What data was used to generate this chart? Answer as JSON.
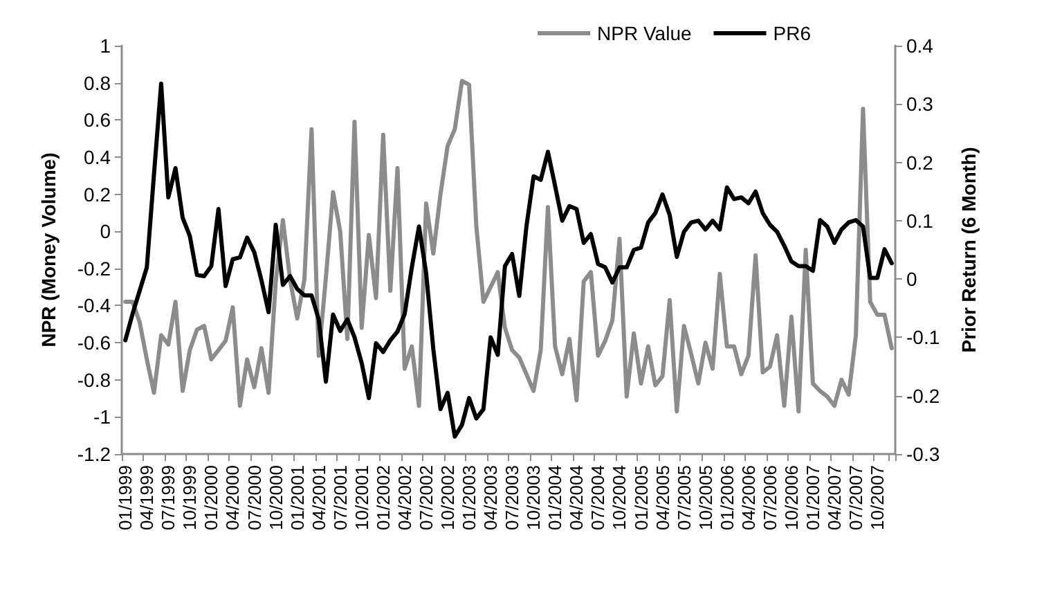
{
  "chart_data": {
    "type": "line",
    "ylabel": "NPR (Money Volume)",
    "y2label": "Prior Return (6 Month)",
    "categories": [
      "01/1999",
      null,
      null,
      "04/1999",
      null,
      null,
      "07/1999",
      null,
      null,
      "10/1999",
      null,
      null,
      "01/2000",
      null,
      null,
      "04/2000",
      null,
      null,
      "07/2000",
      null,
      null,
      "10/2000",
      null,
      null,
      "01/2001",
      null,
      null,
      "04/2001",
      null,
      null,
      "07/2001",
      null,
      null,
      "10/2001",
      null,
      null,
      "01/2002",
      null,
      null,
      "04/2002",
      null,
      null,
      "07/2002",
      null,
      null,
      "10/2002",
      null,
      null,
      "01/2003",
      null,
      null,
      "04/2003",
      null,
      null,
      "07/2003",
      null,
      null,
      "10/2003",
      null,
      null,
      "01/2004",
      null,
      null,
      "04/2004",
      null,
      null,
      "07/2004",
      null,
      null,
      "10/2004",
      null,
      null,
      "01/2005",
      null,
      null,
      "04/2005",
      null,
      null,
      "07/2005",
      null,
      null,
      "10/2005",
      null,
      null,
      "01/2006",
      null,
      null,
      "04/2006",
      null,
      null,
      "07/2006",
      null,
      null,
      "10/2006",
      null,
      null,
      "01/2007",
      null,
      null,
      "04/2007",
      null,
      null,
      "07/2007",
      null,
      null,
      "10/2007",
      null,
      null
    ],
    "series": [
      {
        "name": "NPR Value",
        "color": "#8c8c8c",
        "values": [
          -0.38,
          -0.38,
          -0.49,
          -0.69,
          -0.87,
          -0.56,
          -0.61,
          -0.38,
          -0.86,
          -0.64,
          -0.53,
          -0.51,
          -0.69,
          -0.64,
          -0.59,
          -0.41,
          -0.94,
          -0.69,
          -0.84,
          -0.63,
          -0.87,
          -0.27,
          0.06,
          -0.26,
          -0.47,
          -0.26,
          0.55,
          -0.67,
          -0.25,
          0.21,
          0.0,
          -0.58,
          0.59,
          -0.52,
          -0.02,
          -0.36,
          0.52,
          -0.32,
          0.34,
          -0.74,
          -0.62,
          -0.94,
          0.15,
          -0.12,
          0.2,
          0.46,
          0.55,
          0.81,
          0.79,
          0.03,
          -0.38,
          -0.3,
          -0.22,
          -0.52,
          -0.64,
          -0.68,
          -0.77,
          -0.86,
          -0.64,
          0.13,
          -0.62,
          -0.77,
          -0.58,
          -0.91,
          -0.27,
          -0.22,
          -0.67,
          -0.59,
          -0.48,
          -0.04,
          -0.89,
          -0.55,
          -0.82,
          -0.62,
          -0.83,
          -0.78,
          -0.37,
          -0.97,
          -0.51,
          -0.66,
          -0.82,
          -0.6,
          -0.74,
          -0.23,
          -0.62,
          -0.62,
          -0.77,
          -0.67,
          -0.13,
          -0.76,
          -0.73,
          -0.56,
          -0.94,
          -0.46,
          -0.97,
          -0.1,
          -0.82,
          -0.86,
          -0.89,
          -0.94,
          -0.8,
          -0.88,
          -0.56,
          0.66,
          -0.38,
          -0.45,
          -0.45,
          -0.63
        ]
      },
      {
        "name": "PR6",
        "color": "#000000",
        "axis": "y2",
        "values": [
          -0.105,
          -0.06,
          -0.02,
          0.02,
          0.18,
          0.335,
          0.14,
          0.19,
          0.105,
          0.074,
          0.007,
          0.005,
          0.022,
          0.12,
          -0.012,
          0.034,
          0.037,
          0.071,
          0.046,
          -0.002,
          -0.057,
          0.093,
          -0.01,
          0.005,
          -0.017,
          -0.028,
          -0.028,
          -0.069,
          -0.176,
          -0.061,
          -0.089,
          -0.069,
          -0.1,
          -0.144,
          -0.204,
          -0.11,
          -0.125,
          -0.105,
          -0.09,
          -0.06,
          0.02,
          0.09,
          0.01,
          -0.12,
          -0.223,
          -0.195,
          -0.27,
          -0.25,
          -0.204,
          -0.239,
          -0.223,
          -0.1,
          -0.13,
          0.022,
          0.043,
          -0.029,
          0.09,
          0.176,
          0.17,
          0.218,
          0.16,
          0.1,
          0.125,
          0.12,
          0.062,
          0.077,
          0.026,
          0.02,
          -0.006,
          0.02,
          0.02,
          0.05,
          0.054,
          0.097,
          0.113,
          0.145,
          0.11,
          0.038,
          0.081,
          0.097,
          0.1,
          0.085,
          0.1,
          0.085,
          0.157,
          0.137,
          0.14,
          0.13,
          0.15,
          0.113,
          0.093,
          0.081,
          0.057,
          0.03,
          0.022,
          0.022,
          0.014,
          0.101,
          0.09,
          0.062,
          0.085,
          0.097,
          0.101,
          0.09,
          0.002,
          0.002,
          0.051,
          0.027
        ]
      }
    ],
    "ylim": [
      -1.2,
      1
    ],
    "yticks": [
      -1.2,
      -1,
      -0.8,
      -0.6,
      -0.4,
      -0.2,
      0,
      0.2,
      0.4,
      0.6,
      0.8,
      1
    ],
    "y2lim": [
      -0.3,
      0.4
    ],
    "y2ticks": [
      -0.3,
      -0.2,
      -0.1,
      0,
      0.1,
      0.2,
      0.3,
      0.4
    ],
    "grid": false,
    "legend": "top right",
    "marker": "none",
    "line_style": "solid"
  }
}
